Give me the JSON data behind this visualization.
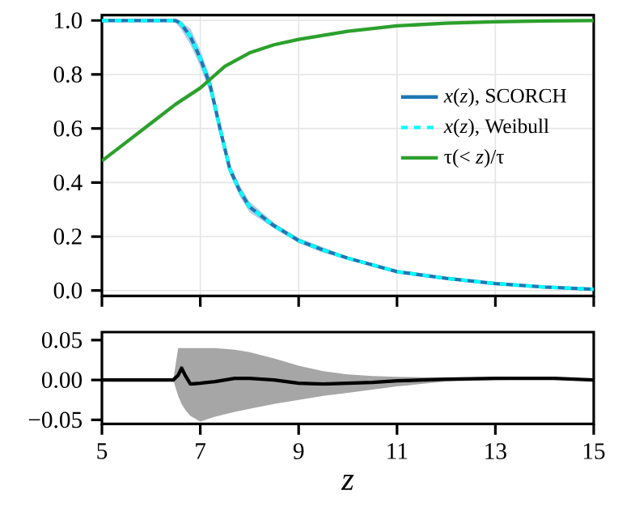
{
  "chart_data": [
    {
      "type": "line",
      "xlim": [
        5,
        15
      ],
      "xticks": [
        5,
        7,
        9,
        11,
        13,
        15
      ],
      "ylim": [
        -0.02,
        1.02
      ],
      "yticks": [
        {
          "value": 0,
          "label": "0.0"
        },
        {
          "value": 0.2,
          "label": "0.2"
        },
        {
          "value": 0.4,
          "label": "0.4"
        },
        {
          "value": 0.6,
          "label": "0.6"
        },
        {
          "value": 0.8,
          "label": "0.8"
        },
        {
          "value": 1,
          "label": "1.0"
        }
      ],
      "grid": true,
      "tick_labels": "y",
      "legend": "right",
      "series": [
        {
          "name": "*x*(*z*), SCORCH",
          "color": "#1f77b4",
          "line_style": "solid",
          "x": [
            5,
            6,
            6.4,
            6.5,
            6.6,
            6.8,
            7,
            7.2,
            7.4,
            7.6,
            7.8,
            8,
            8.5,
            9,
            9.5,
            10,
            11,
            12,
            13,
            14,
            15
          ],
          "values": [
            1,
            1,
            1,
            1,
            0.99,
            0.94,
            0.86,
            0.76,
            0.6,
            0.45,
            0.37,
            0.31,
            0.24,
            0.185,
            0.15,
            0.12,
            0.07,
            0.045,
            0.026,
            0.013,
            0.005
          ],
          "lower": [
            1,
            1,
            1,
            0.99,
            0.97,
            0.91,
            0.83,
            0.73,
            0.58,
            0.43,
            0.35,
            0.29,
            0.23,
            0.175,
            0.14,
            0.115,
            0.067,
            0.043,
            0.025,
            0.012,
            0.004
          ],
          "upper": [
            1,
            1,
            1,
            1,
            0.995,
            0.97,
            0.89,
            0.79,
            0.63,
            0.47,
            0.39,
            0.33,
            0.25,
            0.195,
            0.16,
            0.125,
            0.073,
            0.047,
            0.027,
            0.014,
            0.006
          ]
        },
        {
          "name": "*x*(*z*), Weibull",
          "color": "#00ffff",
          "line_style": "dashed",
          "x": [
            5,
            6,
            6.4,
            6.5,
            6.6,
            6.8,
            7,
            7.2,
            7.4,
            7.6,
            7.8,
            8,
            8.5,
            9,
            9.5,
            10,
            11,
            12,
            13,
            14,
            15
          ],
          "values": [
            1,
            1,
            1,
            1,
            0.99,
            0.94,
            0.86,
            0.76,
            0.6,
            0.45,
            0.37,
            0.31,
            0.24,
            0.185,
            0.15,
            0.12,
            0.07,
            0.045,
            0.026,
            0.013,
            0.005
          ]
        },
        {
          "name": "τ(< *z*)/τ",
          "color": "#2ca02c",
          "line_style": "solid",
          "x": [
            5,
            5.5,
            6,
            6.5,
            7,
            7.5,
            8,
            8.5,
            9,
            10,
            11,
            12,
            13,
            14,
            15
          ],
          "values": [
            0.48,
            0.55,
            0.62,
            0.69,
            0.75,
            0.83,
            0.88,
            0.91,
            0.93,
            0.96,
            0.98,
            0.99,
            0.995,
            0.998,
            1
          ]
        }
      ]
    },
    {
      "type": "line",
      "xlabel": "z",
      "xlim": [
        5,
        15
      ],
      "xticks": [
        5,
        7,
        9,
        11,
        13,
        15
      ],
      "ylim": [
        -0.055,
        0.06
      ],
      "yticks": [
        {
          "value": -0.05,
          "label": "−0.05"
        },
        {
          "value": 0,
          "label": "0.00"
        },
        {
          "value": 0.05,
          "label": "0.05"
        }
      ],
      "grid": false,
      "series": [
        {
          "color": "#000000",
          "line_style": "solid",
          "x": [
            5,
            6,
            6.45,
            6.55,
            6.62,
            6.7,
            6.8,
            7,
            7.3,
            7.7,
            8,
            8.5,
            9,
            9.5,
            10,
            10.5,
            11,
            12,
            13,
            14.2,
            15
          ],
          "values": [
            0,
            0,
            0,
            0.006,
            0.015,
            0.005,
            -0.005,
            -0.004,
            -0.002,
            0.002,
            0.002,
            0,
            -0.004,
            -0.005,
            -0.004,
            -0.003,
            -0.001,
            0.001,
            0.002,
            0.002,
            0
          ],
          "lower": [
            0,
            0,
            0,
            -0.02,
            -0.03,
            -0.038,
            -0.045,
            -0.052,
            -0.046,
            -0.04,
            -0.036,
            -0.03,
            -0.025,
            -0.02,
            -0.016,
            -0.012,
            -0.008,
            -0.002,
            0,
            0.001,
            0
          ],
          "upper": [
            0,
            0,
            0,
            0.04,
            0.04,
            0.04,
            0.04,
            0.04,
            0.04,
            0.038,
            0.035,
            0.027,
            0.018,
            0.011,
            0.007,
            0.005,
            0.004,
            0.003,
            0.003,
            0.002,
            0
          ]
        }
      ]
    }
  ]
}
